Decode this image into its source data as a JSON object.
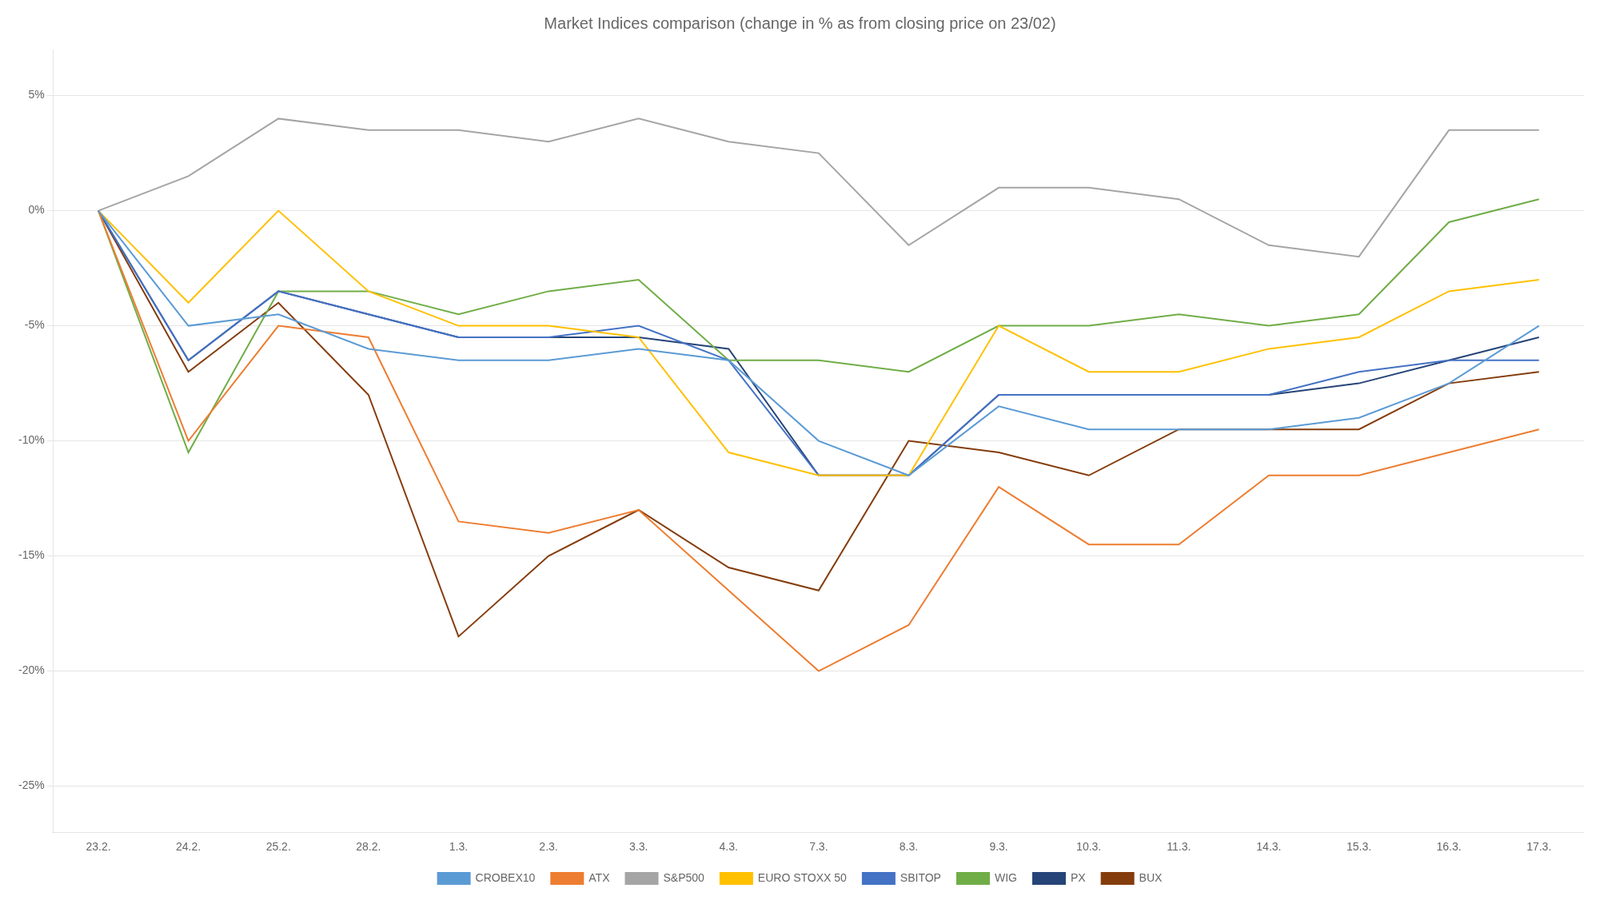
{
  "chart_data": {
    "type": "line",
    "title": "Market Indices comparison (change in % as from closing price on 23/02)",
    "categories": [
      "23.2.",
      "24.2.",
      "25.2.",
      "28.2.",
      "1.3.",
      "2.3.",
      "3.3.",
      "4.3.",
      "7.3.",
      "8.3.",
      "9.3.",
      "10.3.",
      "11.3.",
      "14.3.",
      "15.3.",
      "16.3.",
      "17.3."
    ],
    "series": [
      {
        "name": "CROBEX10",
        "color": "#5B9BD5",
        "values": [
          0,
          -5.0,
          -4.5,
          -6.0,
          -6.5,
          -6.5,
          -6.0,
          -6.5,
          -10.0,
          -11.5,
          -8.5,
          -9.5,
          -9.5,
          -9.5,
          -9.0,
          -7.5,
          -5.0
        ]
      },
      {
        "name": "ATX",
        "color": "#ED7D31",
        "values": [
          0,
          -10.0,
          -5.0,
          -5.5,
          -13.5,
          -14.0,
          -13.0,
          -16.5,
          -20.0,
          -18.0,
          -12.0,
          -14.5,
          -14.5,
          -11.5,
          -11.5,
          -10.5,
          -9.5
        ]
      },
      {
        "name": "S&P500",
        "color": "#A5A5A5",
        "values": [
          0,
          1.5,
          4.0,
          3.5,
          3.5,
          3.0,
          4.0,
          3.0,
          2.5,
          -1.5,
          1.0,
          1.0,
          0.5,
          -1.5,
          -2.0,
          3.5,
          3.5
        ]
      },
      {
        "name": "EURO STOXX 50",
        "color": "#FFC000",
        "values": [
          0,
          -4.0,
          0.0,
          -3.5,
          -5.0,
          -5.0,
          -5.5,
          -10.5,
          -11.5,
          -11.5,
          -5.0,
          -7.0,
          -7.0,
          -6.0,
          -5.5,
          -3.5,
          -3.0
        ]
      },
      {
        "name": "SBITOP",
        "color": "#4472C4",
        "values": [
          0,
          -6.5,
          -3.5,
          -4.5,
          -5.5,
          -5.5,
          -5.0,
          -6.5,
          -11.5,
          -11.5,
          -8.0,
          -8.0,
          -8.0,
          -8.0,
          -7.0,
          -6.5,
          -6.5
        ]
      },
      {
        "name": "WIG",
        "color": "#70AD47",
        "values": [
          0,
          -10.5,
          -3.5,
          -3.5,
          -4.5,
          -3.5,
          -3.0,
          -6.5,
          -6.5,
          -7.0,
          -5.0,
          -5.0,
          -4.5,
          -5.0,
          -4.5,
          -0.5,
          0.5
        ]
      },
      {
        "name": "PX",
        "color": "#264478",
        "values": [
          0,
          -6.5,
          -3.5,
          -4.5,
          -5.5,
          -5.5,
          -5.5,
          -6.0,
          -11.5,
          -11.5,
          -8.0,
          -8.0,
          -8.0,
          -8.0,
          -7.5,
          -6.5,
          -5.5
        ]
      },
      {
        "name": "BUX",
        "color": "#843C0C",
        "values": [
          0,
          -7.0,
          -4.0,
          -8.0,
          -18.5,
          -15.0,
          -13.0,
          -15.5,
          -16.5,
          -10.0,
          -10.5,
          -11.5,
          -9.5,
          -9.5,
          -9.5,
          -7.5,
          -7.0
        ]
      }
    ],
    "ylim": [
      -27,
      7
    ],
    "yticks": [
      {
        "value": 5,
        "label": "5%"
      },
      {
        "value": 0,
        "label": "0%"
      },
      {
        "value": -5,
        "label": "-5%"
      },
      {
        "value": -10,
        "label": "-10%"
      },
      {
        "value": -15,
        "label": "-15%"
      },
      {
        "value": -20,
        "label": "-20%"
      },
      {
        "value": -25,
        "label": "-25%"
      }
    ],
    "grid": true,
    "legend": "bottom"
  }
}
